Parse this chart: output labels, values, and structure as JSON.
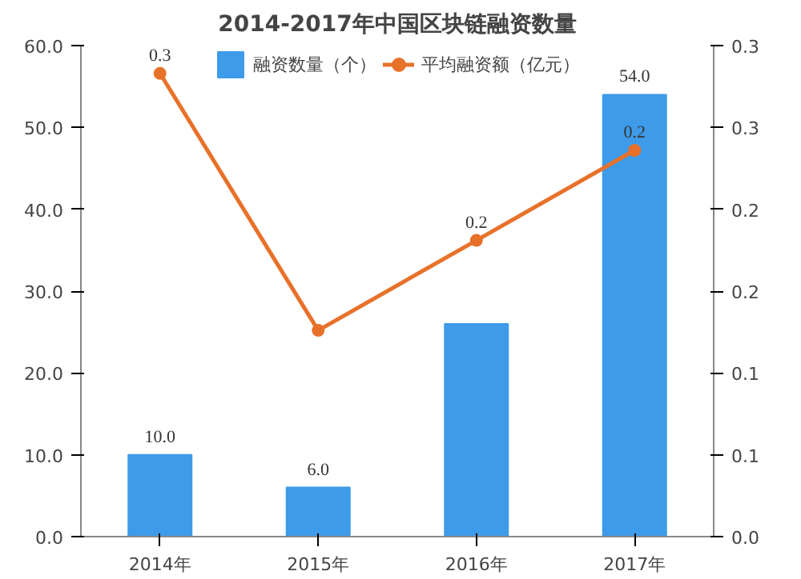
{
  "chart_data": {
    "type": "bar",
    "title": "2014-2017年中国区块链融资数量",
    "categories": [
      "2014年",
      "2015年",
      "2016年",
      "2017年"
    ],
    "series": [
      {
        "name": "融资数量（个）",
        "color": "#3d9be9",
        "values": [
          10,
          6,
          26,
          54
        ],
        "value_labels": [
          "10.0",
          "6.0",
          null,
          "54.0"
        ]
      },
      {
        "name": "平均融资额（亿元）",
        "type": "line",
        "axis": "y2",
        "color": "#e8712a",
        "marker": "circle",
        "values": [
          0.283,
          0.126,
          0.181,
          0.236
        ],
        "value_labels": [
          "0.3",
          null,
          "0.2",
          "0.2"
        ]
      }
    ],
    "ylim": [
      0,
      60
    ],
    "yticks": [
      {
        "value": 0,
        "label": "0.0"
      },
      {
        "value": 10,
        "label": "10.0"
      },
      {
        "value": 20,
        "label": "20.0"
      },
      {
        "value": 30,
        "label": "30.0"
      },
      {
        "value": 40,
        "label": "40.0"
      },
      {
        "value": 50,
        "label": "50.0"
      },
      {
        "value": 60,
        "label": "60.0"
      }
    ],
    "y2lim": [
      0,
      0.3
    ],
    "y2ticks": [
      {
        "value": 0,
        "label": "0.0"
      },
      {
        "value": 0.05,
        "label": "0.1"
      },
      {
        "value": 0.1,
        "label": "0.1"
      },
      {
        "value": 0.15,
        "label": "0.2"
      },
      {
        "value": 0.2,
        "label": "0.2"
      },
      {
        "value": 0.25,
        "label": "0.3"
      },
      {
        "value": 0.3,
        "label": "0.3"
      }
    ],
    "legend": "top",
    "grid": false
  }
}
